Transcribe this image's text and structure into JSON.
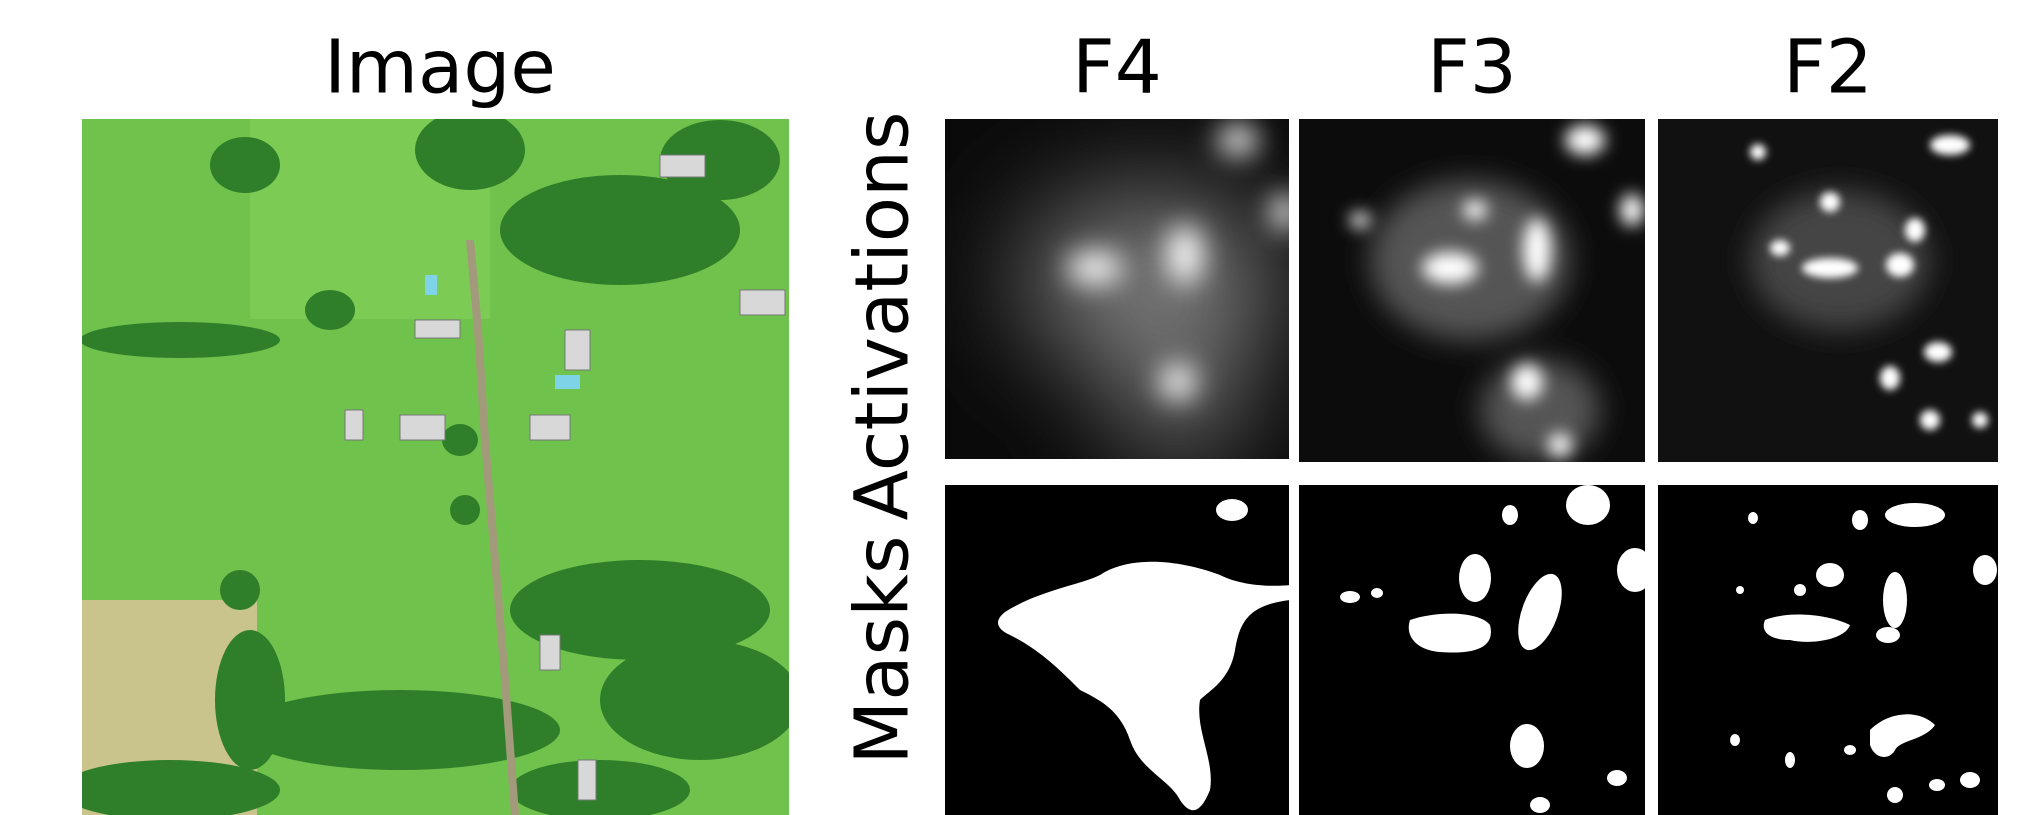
{
  "image_title": "Image",
  "columns": [
    "F4",
    "F3",
    "F2"
  ],
  "rows": [
    "Activations",
    "Masks"
  ]
}
